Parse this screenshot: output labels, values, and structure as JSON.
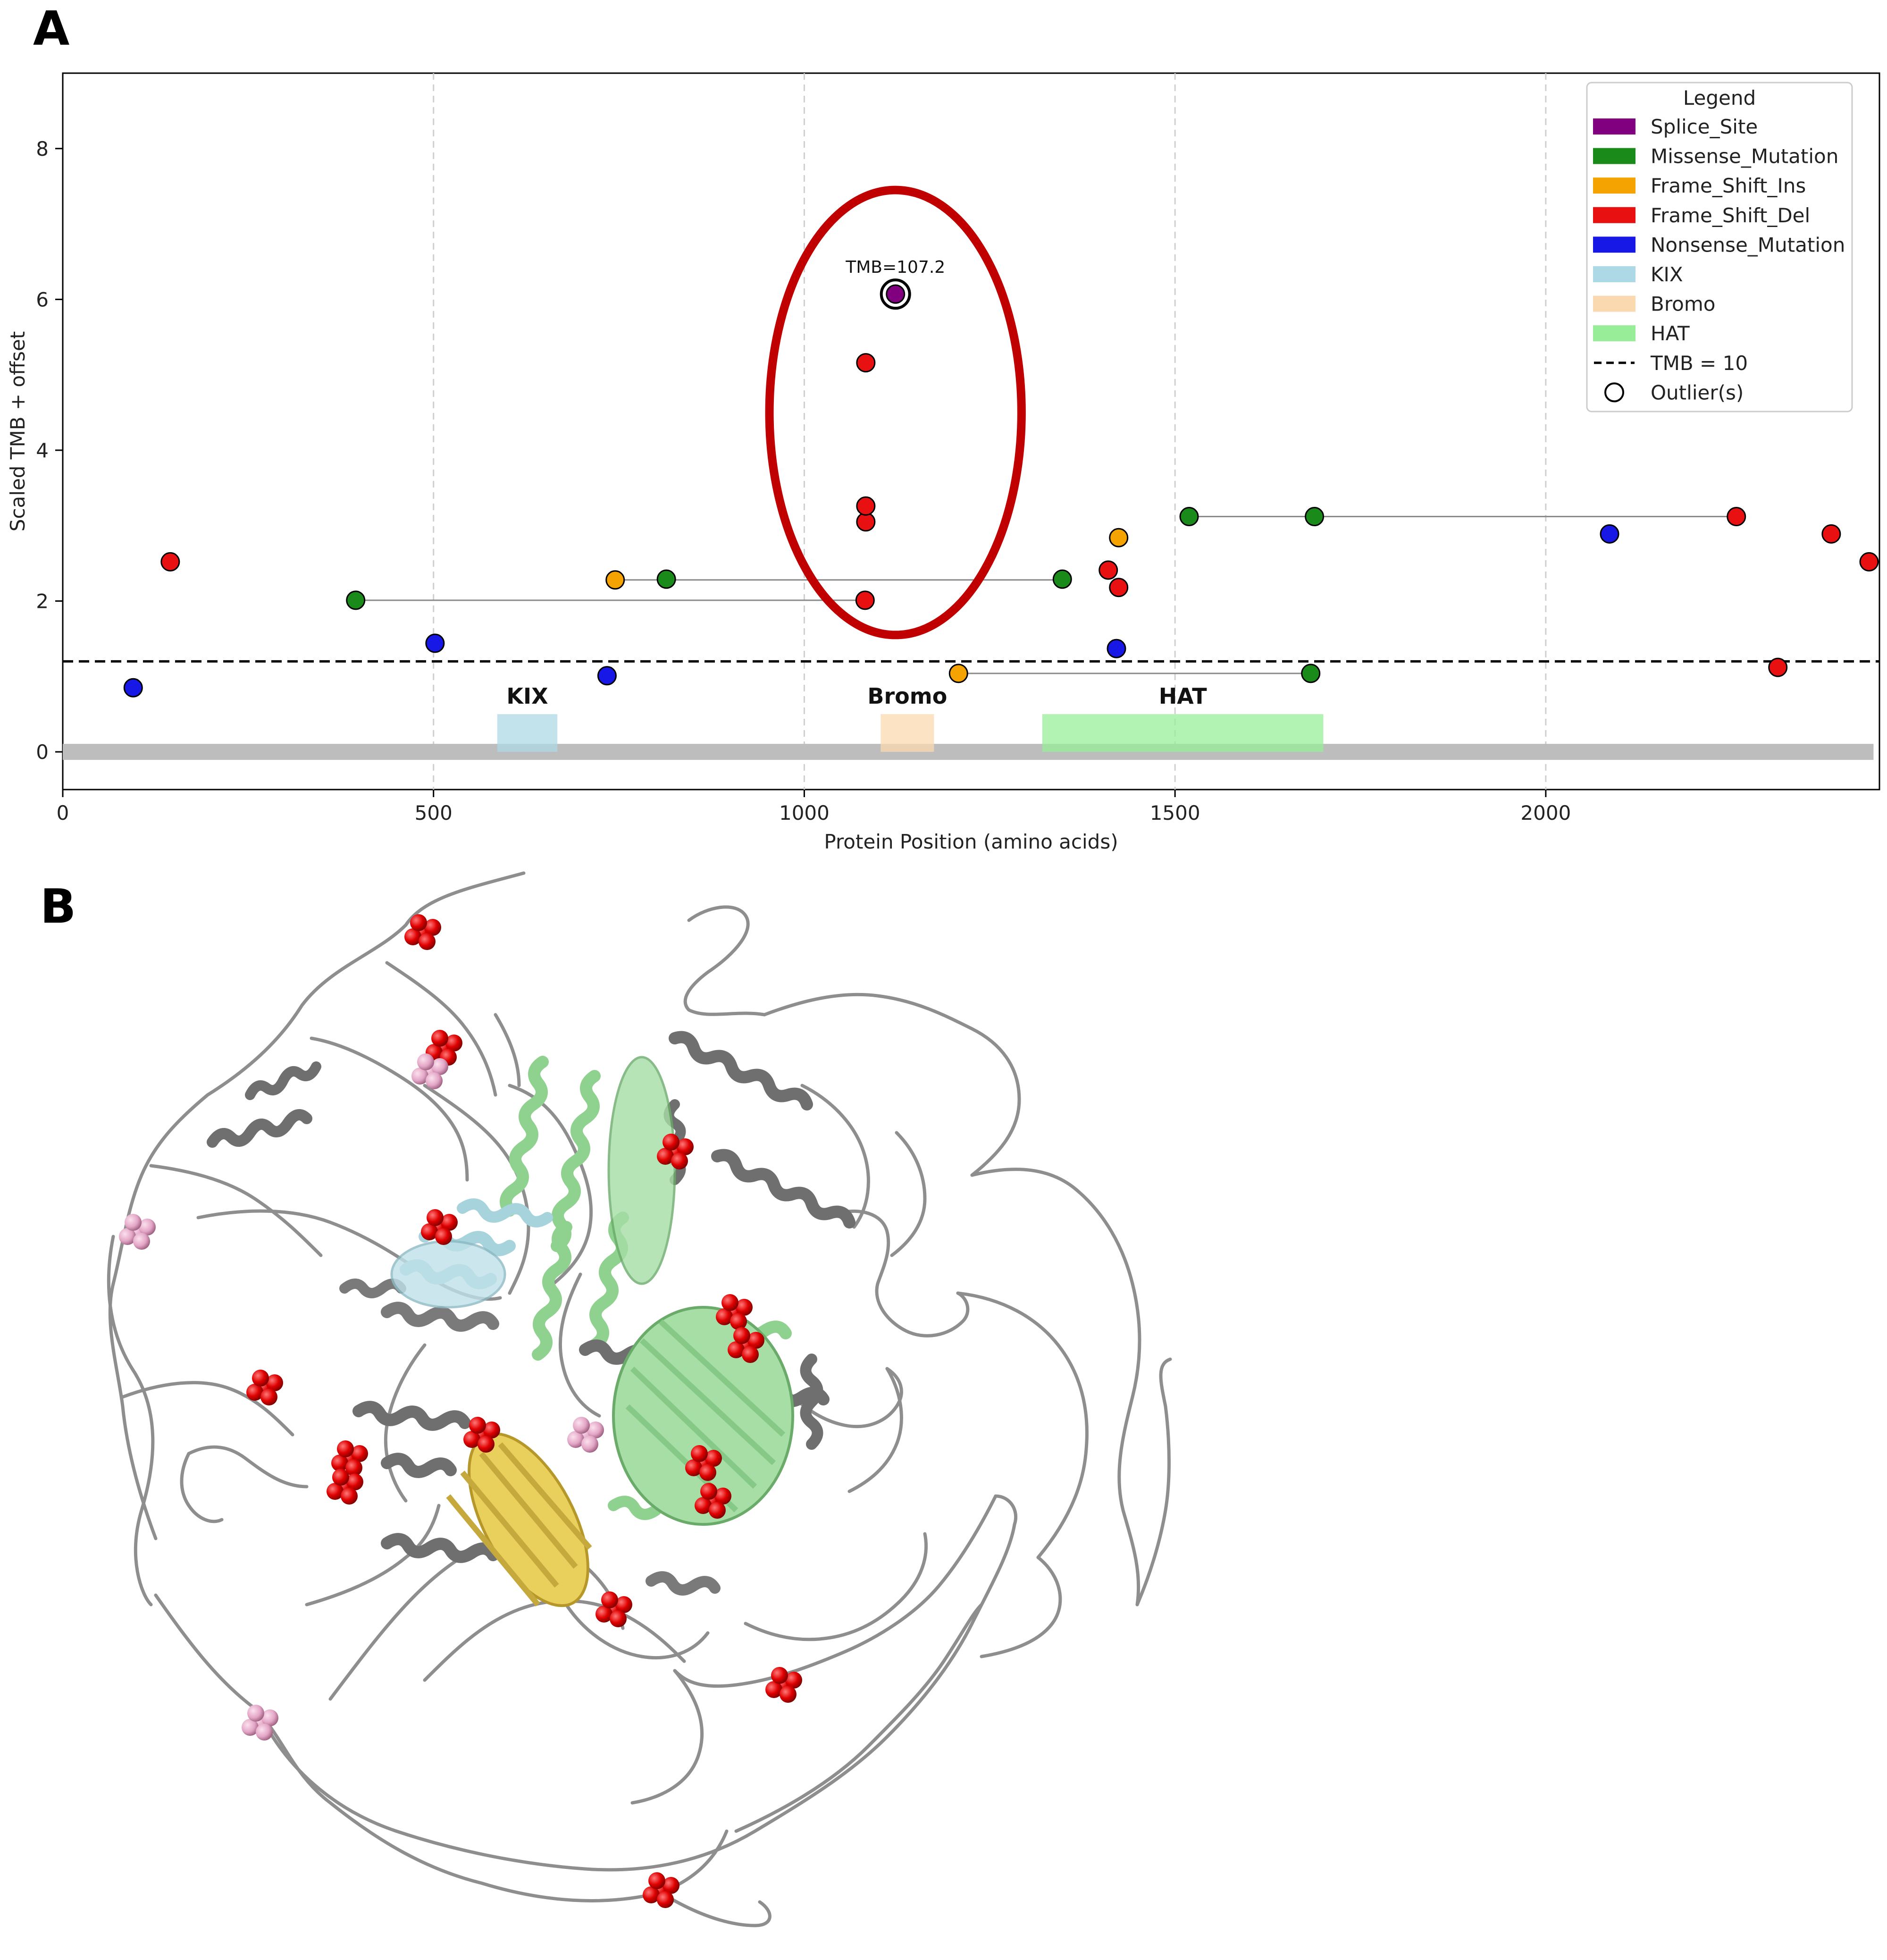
{
  "figure": {
    "panel_a_label": "A",
    "panel_b_label": "B"
  },
  "chart_data": {
    "type": "scatter",
    "title": "",
    "xlabel": "Protein Position (amino acids)",
    "ylabel": "Scaled TMB + offset",
    "xlim": [
      0,
      2450
    ],
    "ylim": [
      -0.5,
      9
    ],
    "x_ticks": [
      0,
      500,
      1000,
      1500,
      2000
    ],
    "y_ticks": [
      0,
      2,
      4,
      6,
      8
    ],
    "grid": "vertical dashed",
    "legend_position": "top-right",
    "legend_title": "Legend",
    "colors": {
      "Splice_Site": "#800080",
      "Missense_Mutation": "#1a8a1a",
      "Frame_Shift_Ins": "#f4a300",
      "Frame_Shift_Del": "#e81010",
      "Nonsense_Mutation": "#1818e6",
      "KIX": "#add8e6",
      "Bromo": "#fbd9b0",
      "HAT": "#98ee98",
      "backbone": "#bdbdbd",
      "highlight": "#c00000"
    },
    "legend": [
      {
        "label": "Splice_Site",
        "kind": "patch",
        "color": "#800080"
      },
      {
        "label": "Missense_Mutation",
        "kind": "patch",
        "color": "#1a8a1a"
      },
      {
        "label": "Frame_Shift_Ins",
        "kind": "patch",
        "color": "#f4a300"
      },
      {
        "label": "Frame_Shift_Del",
        "kind": "patch",
        "color": "#e81010"
      },
      {
        "label": "Nonsense_Mutation",
        "kind": "patch",
        "color": "#1818e6"
      },
      {
        "label": "KIX",
        "kind": "patch",
        "color": "#add8e6"
      },
      {
        "label": "Bromo",
        "kind": "patch",
        "color": "#fbd9b0"
      },
      {
        "label": "HAT",
        "kind": "patch",
        "color": "#98ee98"
      },
      {
        "label": "TMB = 10",
        "kind": "dash",
        "color": "#000000"
      },
      {
        "label": "Outlier(s)",
        "kind": "circle",
        "color": "#000000"
      }
    ],
    "domains": [
      {
        "name": "KIX",
        "start": 586,
        "end": 667,
        "color": "#add8e6"
      },
      {
        "name": "Bromo",
        "start": 1103,
        "end": 1175,
        "color": "#fbd9b0"
      },
      {
        "name": "HAT",
        "start": 1321,
        "end": 1700,
        "color": "#98ee98"
      }
    ],
    "threshold": {
      "label": "TMB = 10",
      "y": 1.2
    },
    "points": [
      {
        "x": 95,
        "y": 0.85,
        "type": "Nonsense_Mutation"
      },
      {
        "x": 145,
        "y": 2.52,
        "type": "Frame_Shift_Del"
      },
      {
        "x": 395,
        "y": 2.01,
        "type": "Missense_Mutation"
      },
      {
        "x": 502,
        "y": 1.44,
        "type": "Nonsense_Mutation"
      },
      {
        "x": 734,
        "y": 1.01,
        "type": "Nonsense_Mutation"
      },
      {
        "x": 745,
        "y": 2.28,
        "type": "Frame_Shift_Ins"
      },
      {
        "x": 814,
        "y": 2.29,
        "type": "Missense_Mutation"
      },
      {
        "x": 1082,
        "y": 2.01,
        "type": "Frame_Shift_Del"
      },
      {
        "x": 1083,
        "y": 3.05,
        "type": "Frame_Shift_Del"
      },
      {
        "x": 1083,
        "y": 3.26,
        "type": "Frame_Shift_Del"
      },
      {
        "x": 1083,
        "y": 5.16,
        "type": "Frame_Shift_Del"
      },
      {
        "x": 1123,
        "y": 6.07,
        "type": "Splice_Site",
        "outlier": true,
        "label": "TMB=107.2"
      },
      {
        "x": 1208,
        "y": 1.04,
        "type": "Frame_Shift_Ins"
      },
      {
        "x": 1348,
        "y": 2.29,
        "type": "Missense_Mutation"
      },
      {
        "x": 1410,
        "y": 2.41,
        "type": "Frame_Shift_Del"
      },
      {
        "x": 1421,
        "y": 1.37,
        "type": "Nonsense_Mutation"
      },
      {
        "x": 1424,
        "y": 2.84,
        "type": "Frame_Shift_Ins"
      },
      {
        "x": 1424,
        "y": 2.18,
        "type": "Frame_Shift_Del"
      },
      {
        "x": 1519,
        "y": 3.12,
        "type": "Missense_Mutation"
      },
      {
        "x": 1683,
        "y": 1.04,
        "type": "Missense_Mutation"
      },
      {
        "x": 1688,
        "y": 3.12,
        "type": "Missense_Mutation"
      },
      {
        "x": 2086,
        "y": 2.89,
        "type": "Nonsense_Mutation"
      },
      {
        "x": 2257,
        "y": 3.12,
        "type": "Frame_Shift_Del"
      },
      {
        "x": 2313,
        "y": 1.12,
        "type": "Frame_Shift_Del"
      },
      {
        "x": 2385,
        "y": 2.89,
        "type": "Frame_Shift_Del"
      },
      {
        "x": 2436,
        "y": 2.52,
        "type": "Frame_Shift_Del"
      }
    ],
    "connectors": [
      {
        "x1": 395,
        "y1": 2.01,
        "x2": 1082,
        "y2": 2.01
      },
      {
        "x1": 745,
        "y1": 2.28,
        "x2": 1348,
        "y2": 2.28
      },
      {
        "x1": 1208,
        "y1": 1.04,
        "x2": 1683,
        "y2": 1.04
      },
      {
        "x1": 1519,
        "y1": 3.12,
        "x2": 2257,
        "y2": 3.12
      }
    ],
    "highlight_ellipse": {
      "cx": 1123,
      "cy": 4.5,
      "rx": 170,
      "ry": 2.95
    }
  }
}
